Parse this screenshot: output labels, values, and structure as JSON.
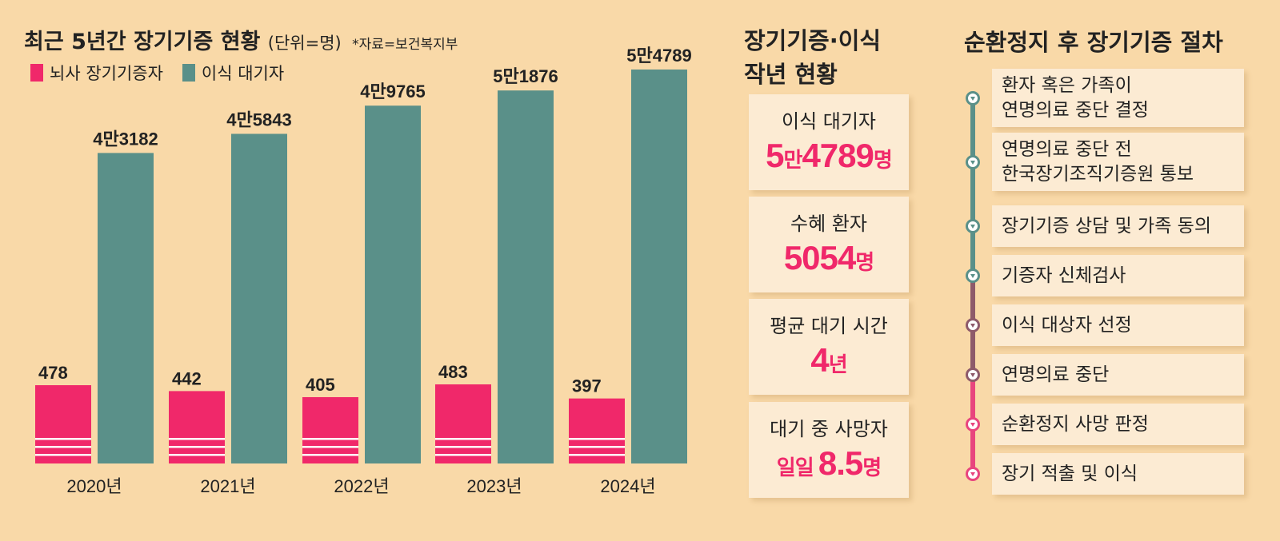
{
  "chart_data": {
    "type": "bar",
    "title": "최근 5년간 장기기증 현황",
    "unit_note": "(단위=명)",
    "source": "*자료=보건복지부",
    "categories": [
      "2020년",
      "2021년",
      "2022년",
      "2023년",
      "2024년"
    ],
    "series": [
      {
        "name": "뇌사 장기기증자",
        "color": "#f0286a",
        "values": [
          478,
          442,
          405,
          483,
          397
        ],
        "labels": [
          "478",
          "442",
          "405",
          "483",
          "397"
        ]
      },
      {
        "name": "이식 대기자",
        "color": "#5a9089",
        "values": [
          43182,
          45843,
          49765,
          51876,
          54789
        ],
        "labels": [
          "4만3182",
          "4만5843",
          "4만9765",
          "5만1876",
          "5만4789"
        ]
      }
    ]
  },
  "summary": {
    "title_line1": "장기기증·이식",
    "title_line2": "작년 현황",
    "stats": [
      {
        "label": "이식 대기자",
        "value": "5",
        "value_small": "만",
        "value2": "4789",
        "unit": "명"
      },
      {
        "label": "수혜 환자",
        "value": "",
        "value_small": "",
        "value2": "5054",
        "unit": "명"
      },
      {
        "label": "평균 대기 시간",
        "value": "",
        "value_small": "",
        "value2": "4",
        "unit": "년"
      },
      {
        "label": "대기 중 사망자",
        "value": "",
        "value_small": "일일 ",
        "value2": "8.5",
        "unit": "명"
      }
    ]
  },
  "procedure": {
    "title": "순환정지 후 장기기증 절차",
    "steps": [
      {
        "line1": "환자 혹은 가족이",
        "line2": "연명의료 중단 결정"
      },
      {
        "line1": "연명의료 중단 전",
        "line2": "한국장기조직기증원 통보"
      },
      {
        "line1": "장기기증 상담 및 가족 동의",
        "line2": ""
      },
      {
        "line1": "기증자 신체검사",
        "line2": ""
      },
      {
        "line1": "이식 대상자 선정",
        "line2": ""
      },
      {
        "line1": "연명의료 중단",
        "line2": ""
      },
      {
        "line1": "순환정지 사망 판정",
        "line2": ""
      },
      {
        "line1": "장기 적출 및 이식",
        "line2": ""
      }
    ]
  }
}
